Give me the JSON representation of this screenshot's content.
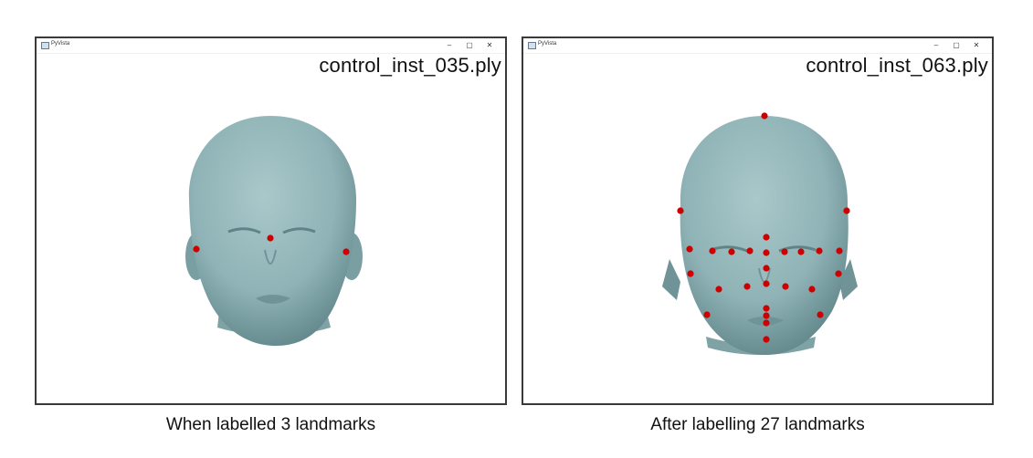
{
  "panels": [
    {
      "window": {
        "app_title": "PyVista",
        "minimize": "–",
        "maximize": "▢",
        "close": "✕"
      },
      "mesh_title": "control_inst_035.ply",
      "caption": "When labelled 3 landmarks",
      "landmark_count": 3
    },
    {
      "window": {
        "app_title": "PyVista",
        "minimize": "–",
        "maximize": "▢",
        "close": "✕"
      },
      "mesh_title": "control_inst_063.ply",
      "caption": "After labelling 27 landmarks",
      "landmark_count": 27
    }
  ],
  "colors": {
    "mesh": "#8fb3b6",
    "mesh_shadow": "#5f8488",
    "landmark": "#cc0000",
    "window_border": "#3a3a3a"
  },
  "icons": [
    "app-icon",
    "minimize-icon",
    "maximize-icon",
    "close-icon"
  ]
}
